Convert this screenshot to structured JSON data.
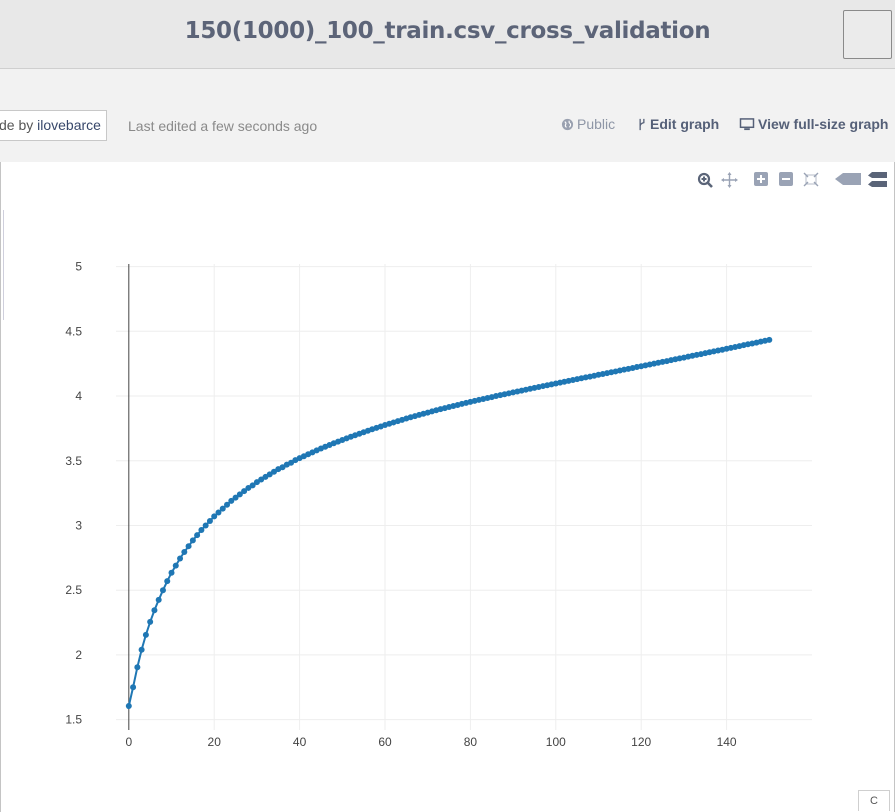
{
  "header": {
    "title": "150(1000)_100_train.csv_cross_validation"
  },
  "info": {
    "made_by_prefix": "de by ",
    "author": "ilovebarce",
    "last_edited": "Last edited a few seconds ago",
    "public_label": "Public",
    "edit_graph_label": "Edit graph",
    "view_full_label": "View full-size graph"
  },
  "modebar": {
    "icons": [
      "zoom-icon",
      "pan-icon",
      "zoom-in-icon",
      "zoom-out-icon",
      "autoscale-icon",
      "hover-closest-icon",
      "hover-compare-icon"
    ]
  },
  "footer": {
    "partial_text": "C"
  },
  "colors": {
    "series": "#1f77b4",
    "grid": "#eeeeee",
    "title": "#5c6478"
  },
  "chart_data": {
    "type": "line",
    "title": "",
    "xlabel": "",
    "ylabel": "",
    "xlim": [
      -3,
      160
    ],
    "ylim": [
      1.42,
      5.02
    ],
    "x_ticks": [
      0,
      20,
      40,
      60,
      80,
      100,
      120,
      140
    ],
    "y_ticks": [
      1.5,
      2,
      2.5,
      3,
      3.5,
      4,
      4.5,
      5
    ],
    "x_tick_labels": [
      "0",
      "20",
      "40",
      "60",
      "80",
      "100",
      "120",
      "140"
    ],
    "y_tick_labels": [
      "1.5",
      "2",
      "2.5",
      "3",
      "3.5",
      "4",
      "4.5",
      "5"
    ],
    "grid": true,
    "legend": "none",
    "series": [
      {
        "markers": true,
        "x": [
          0,
          1,
          2,
          3,
          4,
          5,
          6,
          7,
          8,
          9,
          10,
          11,
          12,
          13,
          14,
          15,
          16,
          17,
          18,
          19,
          20,
          21,
          22,
          23,
          24,
          25,
          26,
          27,
          28,
          29,
          30,
          31,
          32,
          33,
          34,
          35,
          36,
          37,
          38,
          39,
          40,
          41,
          42,
          43,
          44,
          45,
          46,
          47,
          48,
          49,
          50,
          51,
          52,
          53,
          54,
          55,
          56,
          57,
          58,
          59,
          60,
          61,
          62,
          63,
          64,
          65,
          66,
          67,
          68,
          69,
          70,
          71,
          72,
          73,
          74,
          75,
          76,
          77,
          78,
          79,
          80,
          81,
          82,
          83,
          84,
          85,
          86,
          87,
          88,
          89,
          90,
          91,
          92,
          93,
          94,
          95,
          96,
          97,
          98,
          99,
          100,
          101,
          102,
          103,
          104,
          105,
          106,
          107,
          108,
          109,
          110,
          111,
          112,
          113,
          114,
          115,
          116,
          117,
          118,
          119,
          120,
          121,
          122,
          123,
          124,
          125,
          126,
          127,
          128,
          129,
          130,
          131,
          132,
          133,
          134,
          135,
          136,
          137,
          138,
          139,
          140,
          141,
          142,
          143,
          144,
          145,
          146,
          147,
          148,
          149,
          150
        ],
        "y": [
          1.605,
          1.75,
          1.905,
          2.04,
          2.155,
          2.255,
          2.345,
          2.425,
          2.5,
          2.57,
          2.635,
          2.69,
          2.745,
          2.795,
          2.84,
          2.885,
          2.925,
          2.965,
          3.0,
          3.035,
          3.07,
          3.1,
          3.13,
          3.16,
          3.19,
          3.215,
          3.24,
          3.265,
          3.29,
          3.31,
          3.335,
          3.355,
          3.375,
          3.395,
          3.415,
          3.435,
          3.45,
          3.47,
          3.485,
          3.505,
          3.52,
          3.535,
          3.55,
          3.565,
          3.58,
          3.595,
          3.608,
          3.622,
          3.635,
          3.648,
          3.66,
          3.673,
          3.685,
          3.697,
          3.709,
          3.72,
          3.732,
          3.743,
          3.754,
          3.765,
          3.776,
          3.786,
          3.796,
          3.806,
          3.816,
          3.826,
          3.836,
          3.845,
          3.854,
          3.863,
          3.872,
          3.881,
          3.89,
          3.899,
          3.907,
          3.915,
          3.923,
          3.931,
          3.939,
          3.947,
          3.955,
          3.963,
          3.97,
          3.977,
          3.985,
          3.992,
          4.0,
          4.007,
          4.014,
          4.021,
          4.028,
          4.035,
          4.042,
          4.049,
          4.056,
          4.063,
          4.07,
          4.077,
          4.083,
          4.09,
          4.097,
          4.104,
          4.11,
          4.117,
          4.124,
          4.131,
          4.137,
          4.144,
          4.15,
          4.157,
          4.164,
          4.17,
          4.177,
          4.184,
          4.19,
          4.197,
          4.204,
          4.21,
          4.217,
          4.224,
          4.23,
          4.237,
          4.244,
          4.25,
          4.257,
          4.264,
          4.27,
          4.277,
          4.284,
          4.291,
          4.297,
          4.304,
          4.311,
          4.318,
          4.324,
          4.331,
          4.338,
          4.345,
          4.352,
          4.358,
          4.365,
          4.372,
          4.379,
          4.386,
          4.393,
          4.4,
          4.406,
          4.413,
          4.42,
          4.427,
          4.434
        ]
      }
    ]
  }
}
